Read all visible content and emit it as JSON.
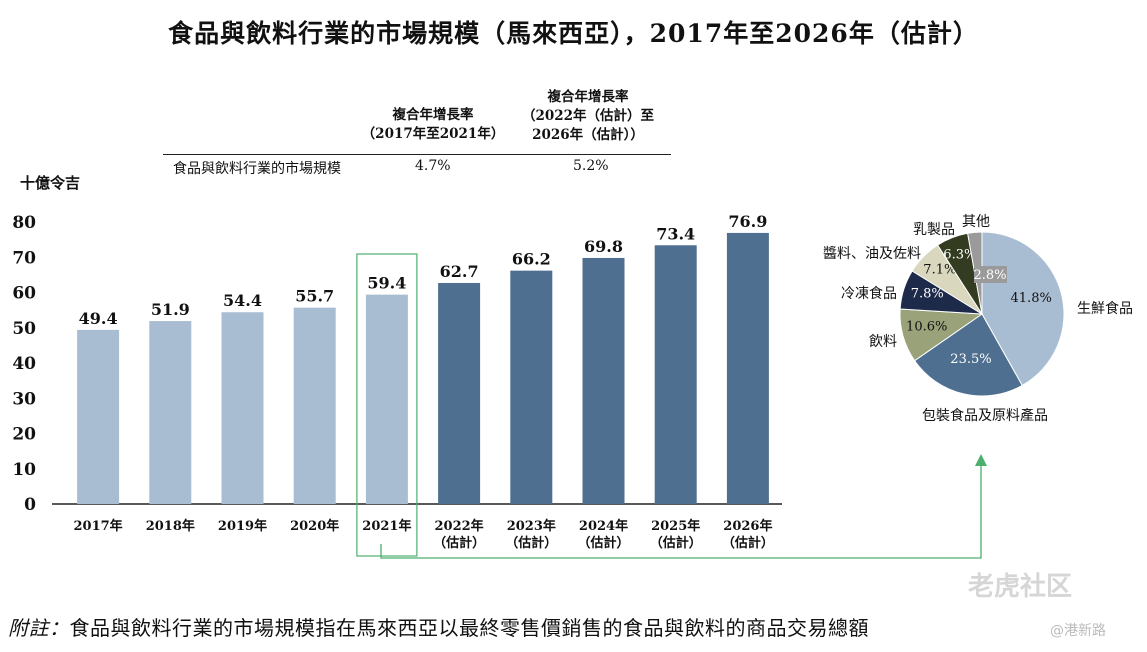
{
  "title": "食品與飲料行業的市場規模（馬來西亞），2017年至2026年（估計）",
  "cagr_table": {
    "header_1": "複合年增長率\n（2017年至2021年）",
    "header_2": "複合年增長率\n（2022年（估計）至\n2026年（估計））",
    "row_label": "食品與飲料行業的市場規模",
    "value_1": "4.7%",
    "value_2": "5.2%"
  },
  "unit_label": "十億令吉",
  "chart_data": [
    {
      "type": "bar",
      "categories": [
        "2017年",
        "2018年",
        "2019年",
        "2020年",
        "2021年",
        "2022年\n（估計）",
        "2023年\n（估計）",
        "2024年\n（估計）",
        "2025年\n（估計）",
        "2026年\n（估計）"
      ],
      "values": [
        49.4,
        51.9,
        54.4,
        55.7,
        59.4,
        62.7,
        66.2,
        69.8,
        73.4,
        76.9
      ],
      "value_labels": [
        "49.4",
        "51.9",
        "54.4",
        "55.7",
        "59.4",
        "62.7",
        "66.2",
        "69.8",
        "73.4",
        "76.9"
      ],
      "ylabel": "十億令吉",
      "ylim": [
        0,
        80
      ],
      "yticks": [
        0,
        10,
        20,
        30,
        40,
        50,
        60,
        70,
        80
      ],
      "grid": false,
      "highlighted_category": "2021年",
      "colors": {
        "historical": "#a9bdd2",
        "forecast": "#4f6f91",
        "highlight_box": "#4caf6e"
      }
    },
    {
      "type": "pie",
      "labels": [
        "生鮮食品",
        "包裝食品及原料產品",
        "飲料",
        "冷凍食品",
        "醬料、油及佐料",
        "乳製品",
        "其他"
      ],
      "values": [
        41.8,
        23.5,
        10.6,
        7.8,
        7.1,
        6.3,
        2.8
      ],
      "value_labels": [
        "41.8%",
        "23.5%",
        "10.6%",
        "7.8%",
        "7.1%",
        "6.3%",
        "2.8%"
      ],
      "colors": [
        "#a9bdd2",
        "#4f6f91",
        "#9aa27a",
        "#1d2a4a",
        "#d9d7bd",
        "#333b20",
        "#9a9a9a"
      ]
    }
  ],
  "footnote": {
    "prefix": "附註：",
    "text": "食品與飲料行業的市場規模指在馬來西亞以最終零售價銷售的食品與飲料的商品交易總額"
  },
  "watermark": "老虎社区",
  "watermark_sub": "@港新路"
}
